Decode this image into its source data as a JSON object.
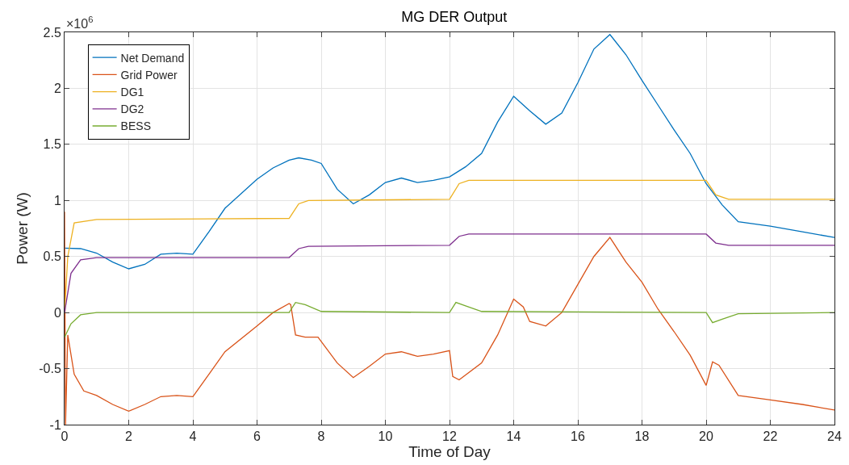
{
  "chart_data": {
    "type": "line",
    "title": "MG DER Output",
    "xlabel": "Time of Day",
    "ylabel": "Power (W)",
    "annotations": [
      "×10$^{6}$"
    ],
    "xlim": [
      0,
      24
    ],
    "xticks": [
      0,
      2,
      4,
      6,
      8,
      10,
      12,
      14,
      16,
      18,
      20,
      22,
      24
    ],
    "ylim": [
      -1,
      2.5
    ],
    "yticks": [
      -1,
      -0.5,
      0,
      0.5,
      1,
      1.5,
      2,
      2.5
    ],
    "grid": true,
    "legend": "top left",
    "marker": "none",
    "line_style": "solid",
    "series": [
      {
        "name": "Net Demand",
        "color": "#0072bd",
        "x": [
          0,
          0.5,
          1,
          1.5,
          2,
          2.5,
          3,
          3.5,
          4,
          4.5,
          5,
          6,
          6.5,
          7,
          7.3,
          7.7,
          8,
          8.5,
          9,
          9.5,
          10,
          10.5,
          11,
          11.5,
          12,
          12.5,
          13,
          13.5,
          14,
          14.5,
          15,
          15.5,
          16,
          16.5,
          17,
          17.5,
          18,
          18.5,
          19,
          19.5,
          20,
          20.5,
          21,
          22,
          23,
          24
        ],
        "values": [
          0.575,
          0.57,
          0.53,
          0.45,
          0.39,
          0.43,
          0.52,
          0.53,
          0.52,
          0.72,
          0.93,
          1.19,
          1.29,
          1.36,
          1.38,
          1.36,
          1.33,
          1.1,
          0.97,
          1.05,
          1.16,
          1.2,
          1.16,
          1.18,
          1.21,
          1.3,
          1.42,
          1.7,
          1.93,
          1.8,
          1.68,
          1.78,
          2.05,
          2.35,
          2.48,
          2.3,
          2.07,
          1.85,
          1.63,
          1.42,
          1.15,
          0.96,
          0.81,
          0.77,
          0.72,
          0.67
        ]
      },
      {
        "name": "Grid Power",
        "color": "#d95319",
        "x": [
          0,
          0.03,
          0.1,
          0.3,
          0.6,
          1,
          1.5,
          2,
          2.5,
          3,
          3.5,
          4,
          4.5,
          5,
          6,
          6.5,
          7,
          7.05,
          7.2,
          7.5,
          7.9,
          8.5,
          9,
          9.5,
          10,
          10.5,
          11,
          11.5,
          12,
          12.1,
          12.3,
          13,
          13.5,
          14,
          14.3,
          14.5,
          15,
          15.5,
          16,
          16.5,
          17,
          17.5,
          18,
          18.5,
          19,
          19.5,
          20,
          20.2,
          20.4,
          21,
          22,
          23,
          24
        ],
        "values": [
          0.9,
          -1,
          -0.2,
          -0.55,
          -0.7,
          -0.74,
          -0.82,
          -0.88,
          -0.82,
          -0.75,
          -0.74,
          -0.75,
          -0.55,
          -0.35,
          -0.12,
          0,
          0.08,
          0.07,
          -0.2,
          -0.22,
          -0.22,
          -0.45,
          -0.58,
          -0.48,
          -0.37,
          -0.35,
          -0.39,
          -0.37,
          -0.34,
          -0.57,
          -0.6,
          -0.45,
          -0.2,
          0.12,
          0.05,
          -0.08,
          -0.12,
          0,
          0.25,
          0.5,
          0.67,
          0.45,
          0.27,
          0.03,
          -0.17,
          -0.38,
          -0.65,
          -0.44,
          -0.47,
          -0.74,
          -0.78,
          -0.82,
          -0.87
        ]
      },
      {
        "name": "DG1",
        "color": "#edb120",
        "x": [
          0,
          0.1,
          0.3,
          1,
          7,
          7.3,
          7.6,
          12,
          12.3,
          12.6,
          20,
          20.3,
          20.7,
          24
        ],
        "values": [
          0,
          0.5,
          0.8,
          0.83,
          0.84,
          0.97,
          1,
          1.01,
          1.15,
          1.18,
          1.18,
          1.05,
          1.01,
          1.01
        ]
      },
      {
        "name": "DG2",
        "color": "#7e2f8e",
        "x": [
          0,
          0.2,
          0.5,
          1,
          7,
          7.3,
          7.6,
          12,
          12.3,
          12.6,
          20,
          20.3,
          20.7,
          24
        ],
        "values": [
          0,
          0.35,
          0.47,
          0.49,
          0.49,
          0.57,
          0.59,
          0.6,
          0.68,
          0.7,
          0.7,
          0.62,
          0.6,
          0.6
        ]
      },
      {
        "name": "BESS",
        "color": "#77ac30",
        "x": [
          0,
          0.2,
          0.5,
          1,
          7,
          7.2,
          7.5,
          8,
          12,
          12.2,
          12.5,
          13,
          20,
          20.2,
          20.5,
          21,
          24
        ],
        "values": [
          -0.22,
          -0.1,
          -0.02,
          0,
          0,
          0.09,
          0.07,
          0.01,
          0,
          0.09,
          0.06,
          0.01,
          0,
          -0.09,
          -0.06,
          -0.01,
          0
        ]
      }
    ]
  }
}
